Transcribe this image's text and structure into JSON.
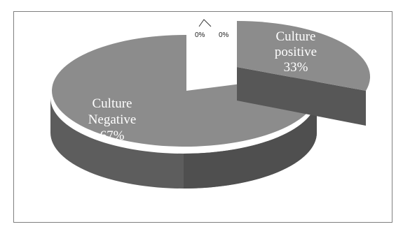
{
  "chart_data": {
    "type": "pie",
    "style": "3d-exploded",
    "legend": "none",
    "slices": [
      {
        "label_lines": [
          "Culture",
          "positive"
        ],
        "percent_label": "33%",
        "value": 33,
        "color": "#8c8c8c",
        "side_color": "#575757"
      },
      {
        "label_lines": [
          "Culture",
          "Negative"
        ],
        "percent_label": "67%",
        "value": 67,
        "color": "#8c8c8c",
        "side_color": "#5d5d5d"
      },
      {
        "label_lines": [],
        "percent_label": "0%",
        "value": 0
      },
      {
        "label_lines": [],
        "percent_label": "0%",
        "value": 0
      }
    ]
  }
}
